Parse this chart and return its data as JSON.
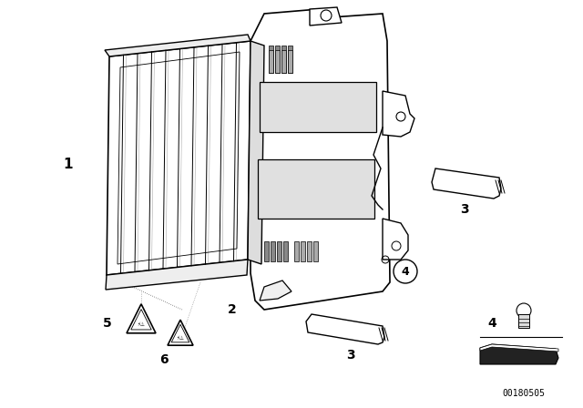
{
  "background_color": "#ffffff",
  "watermark": "00180505",
  "line_color": "#000000",
  "label_fontsize": 9,
  "watermark_fontsize": 7,
  "figsize": [
    6.4,
    4.48
  ],
  "dpi": 100
}
